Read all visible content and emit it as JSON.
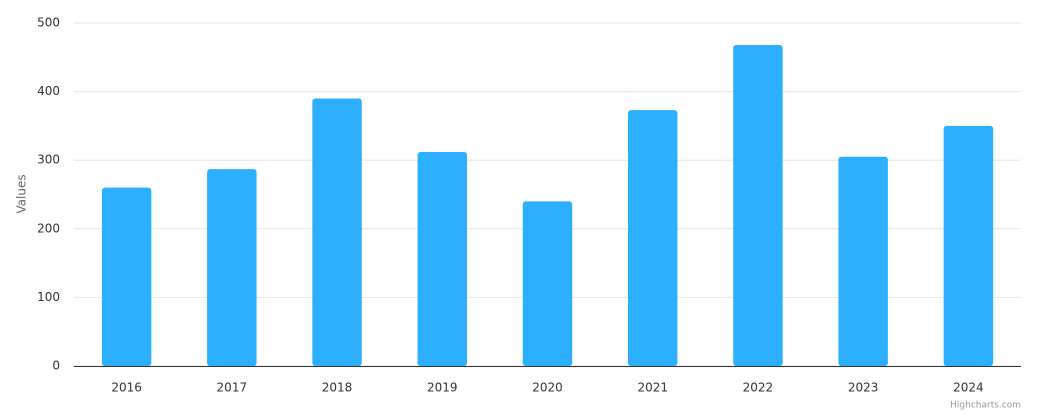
{
  "chart_data": {
    "type": "bar",
    "y_axis_label": "Values",
    "categories": [
      "2016",
      "2017",
      "2018",
      "2019",
      "2020",
      "2021",
      "2022",
      "2023",
      "2024"
    ],
    "values": [
      260,
      287,
      390,
      312,
      240,
      373,
      468,
      305,
      350
    ],
    "color": "#2caffe",
    "ylim": [
      0,
      500
    ],
    "yticks": [
      0,
      100,
      200,
      300,
      400,
      500
    ],
    "grid": true,
    "credits": "Highcharts.com"
  }
}
